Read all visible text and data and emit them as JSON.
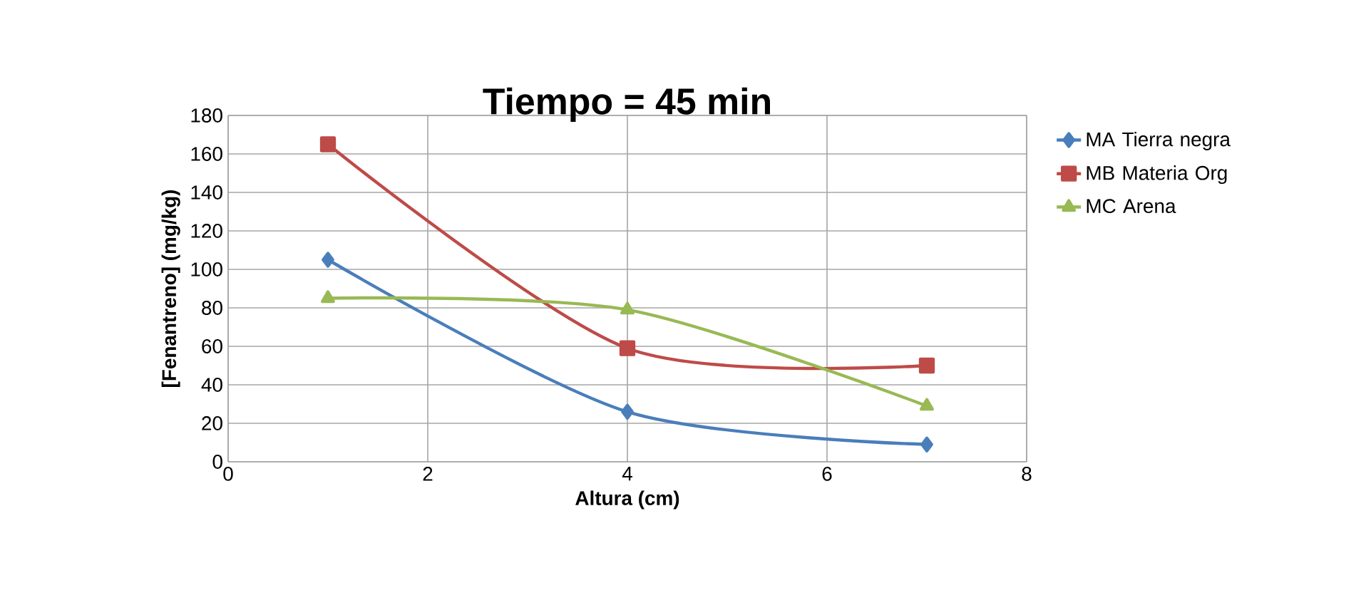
{
  "chart_data": {
    "type": "line",
    "title": "Tiempo = 45 min",
    "xlabel": "Altura (cm)",
    "ylabel": "[Fenantreno] (mg/kg)",
    "x": [
      1,
      4,
      7
    ],
    "series": [
      {
        "name": "MA Tierra negra",
        "color": "#4a7ebb",
        "marker": "diamond",
        "values": [
          105,
          26,
          9
        ]
      },
      {
        "name": "MB Materia Org",
        "color": "#be4b48",
        "marker": "square",
        "values": [
          165,
          59,
          50
        ]
      },
      {
        "name": "MC Arena",
        "color": "#98b954",
        "marker": "triangle",
        "values": [
          85,
          79,
          29
        ]
      }
    ],
    "xlim": [
      0,
      8
    ],
    "xticks": [
      0,
      2,
      4,
      6,
      8
    ],
    "ylim": [
      0,
      180
    ],
    "yticks": [
      0,
      20,
      40,
      60,
      80,
      100,
      120,
      140,
      160,
      180
    ],
    "grid": true,
    "legend": "right"
  }
}
